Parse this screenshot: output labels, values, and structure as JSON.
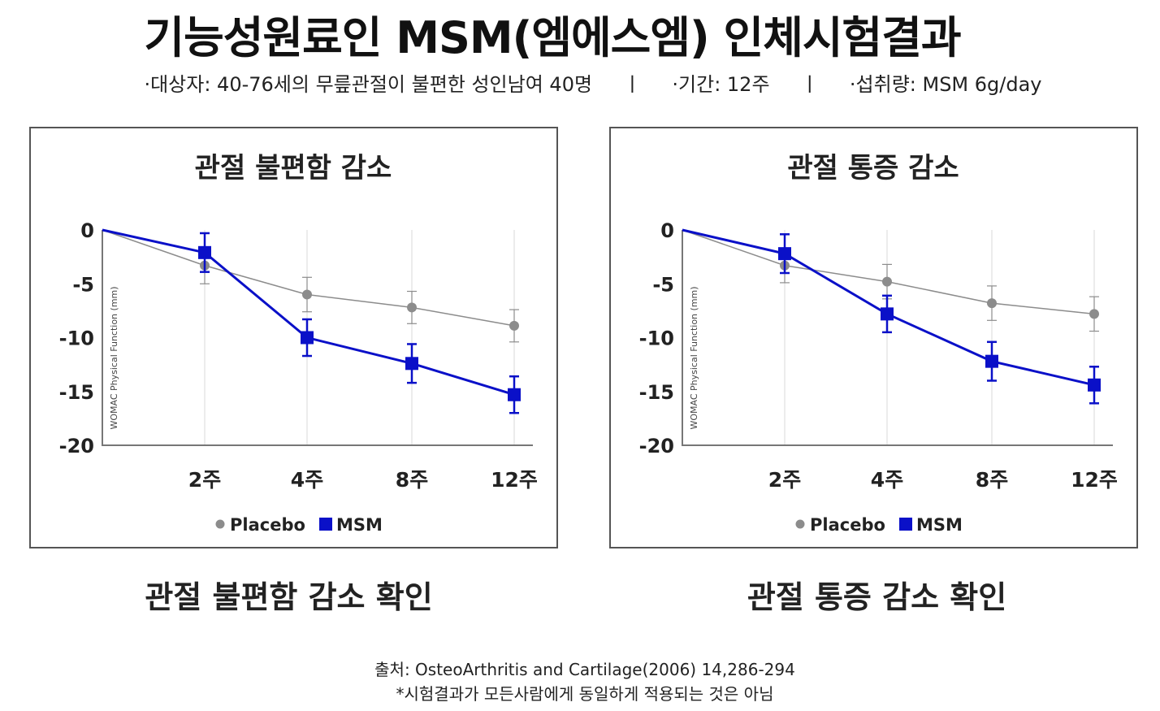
{
  "header": {
    "title": "기능성원료인 MSM(엠에스엠) 인체시험결과",
    "subtitle": "·대상자: 40-76세의 무릎관절이 불편한 성인남여 40명     ㅣ     ·기간: 12주     ㅣ     ·섭취량: MSM 6g/day"
  },
  "chart_data": [
    {
      "type": "line",
      "title": "관절 불편함 감소",
      "ylabel": "WOMAC Physical Function (mm)",
      "categories": [
        "",
        "2주",
        "4주",
        "8주",
        "12주"
      ],
      "ylim": [
        -20,
        0
      ],
      "yticks": [
        0,
        -5,
        -10,
        -15,
        -20
      ],
      "grid": "vertical",
      "legend": "bottom-center",
      "series": [
        {
          "name": "Placebo",
          "color": "#8c8c8c",
          "marker": "circle",
          "values": [
            0,
            -3.3,
            -6.0,
            -7.2,
            -8.9
          ],
          "error": [
            0,
            1.7,
            1.6,
            1.5,
            1.5
          ]
        },
        {
          "name": "MSM",
          "color": "#0a10c8",
          "marker": "square",
          "values": [
            0,
            -2.1,
            -10.0,
            -12.4,
            -15.3
          ],
          "error": [
            0,
            1.8,
            1.7,
            1.8,
            1.7
          ]
        }
      ]
    },
    {
      "type": "line",
      "title": "관절 통증 감소",
      "ylabel": "WOMAC Physical Function (mm)",
      "categories": [
        "",
        "2주",
        "4주",
        "8주",
        "12주"
      ],
      "ylim": [
        -20,
        0
      ],
      "yticks": [
        0,
        -5,
        -10,
        -15,
        -20
      ],
      "grid": "vertical",
      "legend": "bottom-center",
      "series": [
        {
          "name": "Placebo",
          "color": "#8c8c8c",
          "marker": "circle",
          "values": [
            0,
            -3.3,
            -4.8,
            -6.8,
            -7.8
          ],
          "error": [
            0,
            1.6,
            1.6,
            1.6,
            1.6
          ]
        },
        {
          "name": "MSM",
          "color": "#0a10c8",
          "marker": "square",
          "values": [
            0,
            -2.2,
            -7.8,
            -12.2,
            -14.4
          ],
          "error": [
            0,
            1.8,
            1.7,
            1.8,
            1.7
          ]
        }
      ]
    }
  ],
  "captions": {
    "left": "관절 불편함 감소 확인",
    "right": "관절 통증 감소 확인"
  },
  "footer": {
    "source": "출처: OsteoArthritis and Cartilage(2006) 14,286-294",
    "disclaimer": "*시험결과가 모든사람에게 동일하게 적용되는 것은 아님"
  }
}
